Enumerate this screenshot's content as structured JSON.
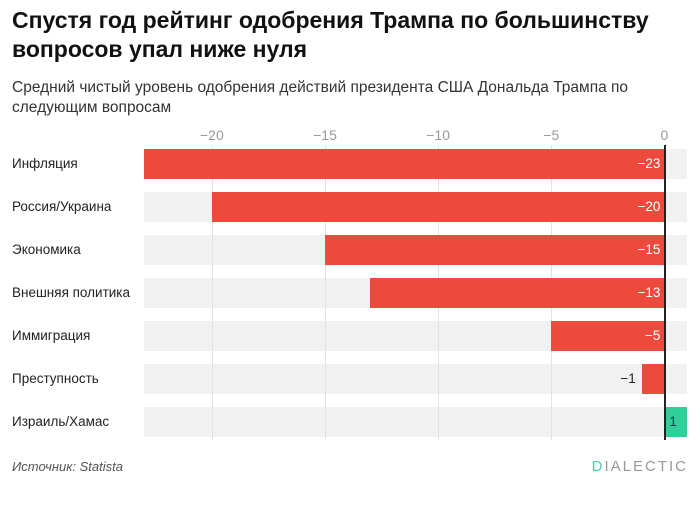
{
  "title": "Спустя год рейтинг одобрения Трампа по большинству вопросов упал ниже нуля",
  "subtitle": "Средний чистый уровень одобрения действий президента США Дональда Трампа по следующим вопросам",
  "source": "Источник: Statista",
  "logo": "DIALECTIC",
  "chart_data": {
    "type": "bar",
    "orientation": "horizontal",
    "categories": [
      "Инфляция",
      "Россия/Украина",
      "Экономика",
      "Внешняя политика",
      "Иммиграция",
      "Преступность",
      "Израиль/Хамас"
    ],
    "values": [
      -23,
      -20,
      -15,
      -13,
      -5,
      -1,
      1
    ],
    "value_labels": [
      "−23",
      "−20",
      "−15",
      "−13",
      "−5",
      "−1",
      "1"
    ],
    "xlim": [
      -23,
      1
    ],
    "ticks": [
      -20,
      -15,
      -10,
      -5,
      0
    ],
    "tick_labels": [
      "−20",
      "−15",
      "−10",
      "−5",
      "0"
    ],
    "axis_position": "top",
    "grid": true,
    "colors": {
      "negative": "#ec4a3c",
      "positive": "#2fcf9a",
      "row_background": "#f1f1f1"
    }
  }
}
